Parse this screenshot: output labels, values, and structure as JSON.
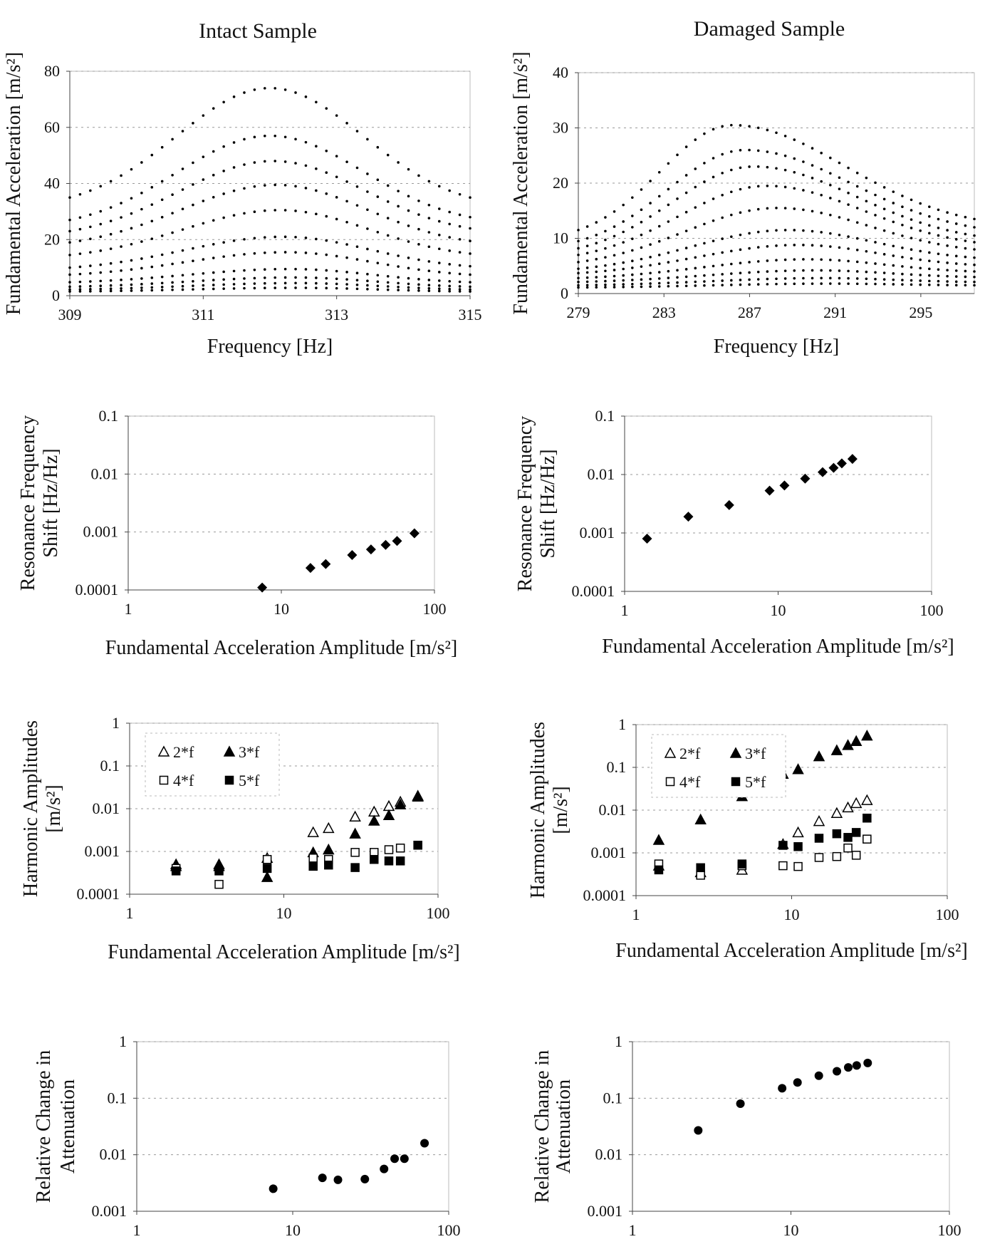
{
  "titles": {
    "left": "Intact Sample",
    "right": "Damaged Sample"
  },
  "chart_data": [
    {
      "id": "intact-fundamental",
      "type": "scatter",
      "title": "Intact Sample",
      "xlabel": "Frequency [Hz]",
      "ylabel": "Fundamental Acceleration [m/s²]",
      "xlim": [
        309,
        315
      ],
      "ylim": [
        0,
        80
      ],
      "xticks": [
        309,
        311,
        313,
        315
      ],
      "yticks": [
        0,
        20,
        40,
        60,
        80
      ],
      "grid": true,
      "curves": {
        "x_range": [
          309,
          315
        ],
        "points_per_curve": 40,
        "peak_x": [
          312.0,
          312.0,
          312.05,
          312.1,
          312.15,
          312.2,
          312.25,
          312.3,
          312.35,
          312.4,
          312.4
        ],
        "peak_y": [
          74,
          57,
          48,
          39.5,
          30.5,
          21,
          15.5,
          9.5,
          6.5,
          4.5,
          2.8
        ],
        "end_y": [
          35,
          28,
          24,
          19.5,
          15,
          10.5,
          7.5,
          4.8,
          3.2,
          2.2,
          1.5
        ],
        "start_y": [
          35,
          27,
          23,
          19,
          14.5,
          10,
          7.5,
          4.8,
          3.2,
          2.2,
          1.5
        ]
      }
    },
    {
      "id": "damaged-fundamental",
      "type": "scatter",
      "title": "Damaged Sample",
      "xlabel": "Frequency [Hz]",
      "ylabel": "Fundamental Acceleration [m/s²]",
      "xlim": [
        279,
        297.5
      ],
      "ylim": [
        0,
        40
      ],
      "xticks": [
        279,
        283,
        287,
        291,
        295
      ],
      "yticks": [
        0,
        10,
        20,
        30,
        40
      ],
      "grid": true,
      "curves": {
        "x_range": [
          279,
          297.5
        ],
        "points_per_curve": 45,
        "peak_x": [
          286.2,
          286.8,
          287.2,
          287.8,
          288.3,
          288.8,
          289.3,
          289.7,
          290.1,
          290.5,
          290.8
        ],
        "peak_y": [
          30.5,
          26,
          23,
          19.5,
          15.5,
          11.5,
          8.8,
          6.2,
          4.2,
          2.8,
          1.8
        ],
        "start_y": [
          11.5,
          9.5,
          8.2,
          7,
          5.7,
          4.5,
          3.7,
          2.8,
          2.1,
          1.5,
          1.1
        ],
        "end_y": [
          13.5,
          12,
          10.5,
          9.3,
          8,
          6.5,
          5.2,
          4,
          3,
          2.1,
          1.5
        ]
      }
    },
    {
      "id": "intact-shift",
      "type": "scatter",
      "xscale": "log",
      "yscale": "log",
      "xlabel": "Fundamental Acceleration Amplitude [m/s²]",
      "ylabel": "Resonance Frequency Shift [Hz/Hz]",
      "xlim": [
        1,
        100
      ],
      "ylim": [
        0.0001,
        0.1
      ],
      "xticks": [
        "1",
        "10",
        "100"
      ],
      "yticks": [
        "0.0001",
        "0.001",
        "0.01",
        "0.1"
      ],
      "series": [
        {
          "marker": "diamond",
          "x": [
            7.5,
            15.5,
            19.5,
            29,
            38.5,
            48,
            57,
            74
          ],
          "y": [
            0.00011,
            0.00024,
            0.00028,
            0.0004,
            0.0005,
            0.0006,
            0.0007,
            0.00095
          ]
        }
      ]
    },
    {
      "id": "damaged-shift",
      "type": "scatter",
      "xscale": "log",
      "yscale": "log",
      "xlabel": "Fundamental Acceleration Amplitude [m/s²]",
      "ylabel": "Resonance Frequency Shift [Hz/Hz]",
      "xlim": [
        1,
        100
      ],
      "ylim": [
        0.0001,
        0.1
      ],
      "xticks": [
        "1",
        "10",
        "100"
      ],
      "yticks": [
        "0.0001",
        "0.001",
        "0.01",
        "0.1"
      ],
      "series": [
        {
          "marker": "diamond",
          "x": [
            1.4,
            2.6,
            4.8,
            8.8,
            11,
            15,
            19.5,
            23,
            26,
            30.5
          ],
          "y": [
            0.0008,
            0.0019,
            0.003,
            0.0053,
            0.0065,
            0.0085,
            0.011,
            0.013,
            0.0155,
            0.0185
          ]
        }
      ]
    },
    {
      "id": "intact-harmonics",
      "type": "scatter",
      "xscale": "log",
      "yscale": "log",
      "xlabel": "Fundamental Acceleration Amplitude [m/s²]",
      "ylabel": "Harmonic Amplitudes [m/s²]",
      "xlim": [
        1,
        100
      ],
      "ylim": [
        0.0001,
        1
      ],
      "xticks": [
        "1",
        "10",
        "100"
      ],
      "yticks": [
        "0.0001",
        "0.001",
        "0.01",
        "0.1",
        "1"
      ],
      "legend_position": "top-left",
      "series": [
        {
          "name": "2*f",
          "marker": "triangle-open",
          "x": [
            2,
            3.8,
            7.8,
            15.5,
            19.5,
            29,
            38.5,
            48,
            57,
            74
          ],
          "y": [
            0.0005,
            0.00045,
            0.0007,
            0.0028,
            0.0035,
            0.0065,
            0.0085,
            0.0115,
            0.0145,
            0.019
          ]
        },
        {
          "name": "3*f",
          "marker": "triangle-filled",
          "x": [
            2,
            3.8,
            7.8,
            15.5,
            19.5,
            29,
            38.5,
            48,
            57,
            74
          ],
          "y": [
            0.00045,
            0.0005,
            0.00025,
            0.00095,
            0.0011,
            0.0026,
            0.0052,
            0.007,
            0.0125,
            0.02
          ]
        },
        {
          "name": "4*f",
          "marker": "square-open",
          "x": [
            2,
            3.8,
            7.8,
            15.5,
            19.5,
            29,
            38.5,
            48,
            57,
            74
          ],
          "y": [
            0.0004,
            0.00017,
            0.00065,
            0.0007,
            0.00065,
            0.00095,
            0.00095,
            0.0011,
            0.0012,
            0.0014
          ]
        },
        {
          "name": "5*f",
          "marker": "square-filled",
          "x": [
            2,
            3.8,
            7.8,
            15.5,
            19.5,
            29,
            38.5,
            48,
            57,
            74
          ],
          "y": [
            0.00035,
            0.00035,
            0.0004,
            0.00045,
            0.00048,
            0.00042,
            0.00065,
            0.0006,
            0.0006,
            0.0014
          ]
        }
      ]
    },
    {
      "id": "damaged-harmonics",
      "type": "scatter",
      "xscale": "log",
      "yscale": "log",
      "xlabel": "Fundamental Acceleration Amplitude [m/s²]",
      "ylabel": "Harmonic Amplitudes [m/s²]",
      "xlim": [
        1,
        100
      ],
      "ylim": [
        0.0001,
        1
      ],
      "xticks": [
        "1",
        "10",
        "100"
      ],
      "yticks": [
        "0.0001",
        "0.001",
        "0.01",
        "0.1",
        "1"
      ],
      "legend_position": "top-left",
      "series": [
        {
          "name": "2*f",
          "marker": "triangle-open",
          "x": [
            1.4,
            2.6,
            4.8,
            8.8,
            11,
            15,
            19.5,
            23,
            26,
            30.5
          ],
          "y": [
            0.0005,
            0.00035,
            0.0004,
            0.0016,
            0.003,
            0.0055,
            0.0085,
            0.0115,
            0.0145,
            0.017
          ]
        },
        {
          "name": "3*f",
          "marker": "triangle-filled",
          "x": [
            1.4,
            2.6,
            4.8,
            8.8,
            11,
            15,
            19.5,
            23,
            26,
            30.5
          ],
          "y": [
            0.002,
            0.006,
            0.021,
            0.07,
            0.09,
            0.18,
            0.25,
            0.33,
            0.41,
            0.55
          ]
        },
        {
          "name": "4*f",
          "marker": "square-open",
          "x": [
            1.4,
            2.6,
            4.8,
            8.8,
            11,
            15,
            19.5,
            23,
            26,
            30.5
          ],
          "y": [
            0.00055,
            0.0003,
            0.0005,
            0.0005,
            0.00048,
            0.00078,
            0.00082,
            0.0013,
            0.00088,
            0.0021
          ]
        },
        {
          "name": "5*f",
          "marker": "square-filled",
          "x": [
            1.4,
            2.6,
            4.8,
            8.8,
            11,
            15,
            19.5,
            23,
            26,
            30.5
          ],
          "y": [
            0.0004,
            0.00045,
            0.00055,
            0.0015,
            0.0014,
            0.0022,
            0.0028,
            0.0023,
            0.003,
            0.0065
          ]
        }
      ]
    },
    {
      "id": "intact-attenuation",
      "type": "scatter",
      "xscale": "log",
      "yscale": "log",
      "xlabel": "",
      "ylabel": "Relative Change in Attenuation",
      "xlim": [
        1,
        100
      ],
      "ylim": [
        0.001,
        1
      ],
      "xticks": [
        "1",
        "10",
        "100"
      ],
      "yticks": [
        "0.001",
        "0.01",
        "0.1",
        "1"
      ],
      "series": [
        {
          "marker": "circle",
          "x": [
            7.5,
            15.5,
            19.5,
            29,
            38.5,
            45,
            52,
            70
          ],
          "y": [
            0.0025,
            0.0039,
            0.0036,
            0.0037,
            0.0056,
            0.0085,
            0.0085,
            0.016
          ]
        }
      ]
    },
    {
      "id": "damaged-attenuation",
      "type": "scatter",
      "xscale": "log",
      "yscale": "log",
      "xlabel": "",
      "ylabel": "Relative Change in Attenuation",
      "xlim": [
        1,
        100
      ],
      "ylim": [
        0.001,
        1
      ],
      "xticks": [
        "1",
        "10",
        "100"
      ],
      "yticks": [
        "0.001",
        "0.01",
        "0.1",
        "1"
      ],
      "series": [
        {
          "marker": "circle",
          "x": [
            2.6,
            4.8,
            8.8,
            11,
            15,
            19.5,
            23,
            26,
            30.5
          ],
          "y": [
            0.027,
            0.08,
            0.15,
            0.19,
            0.25,
            0.3,
            0.35,
            0.38,
            0.42
          ]
        }
      ]
    }
  ]
}
